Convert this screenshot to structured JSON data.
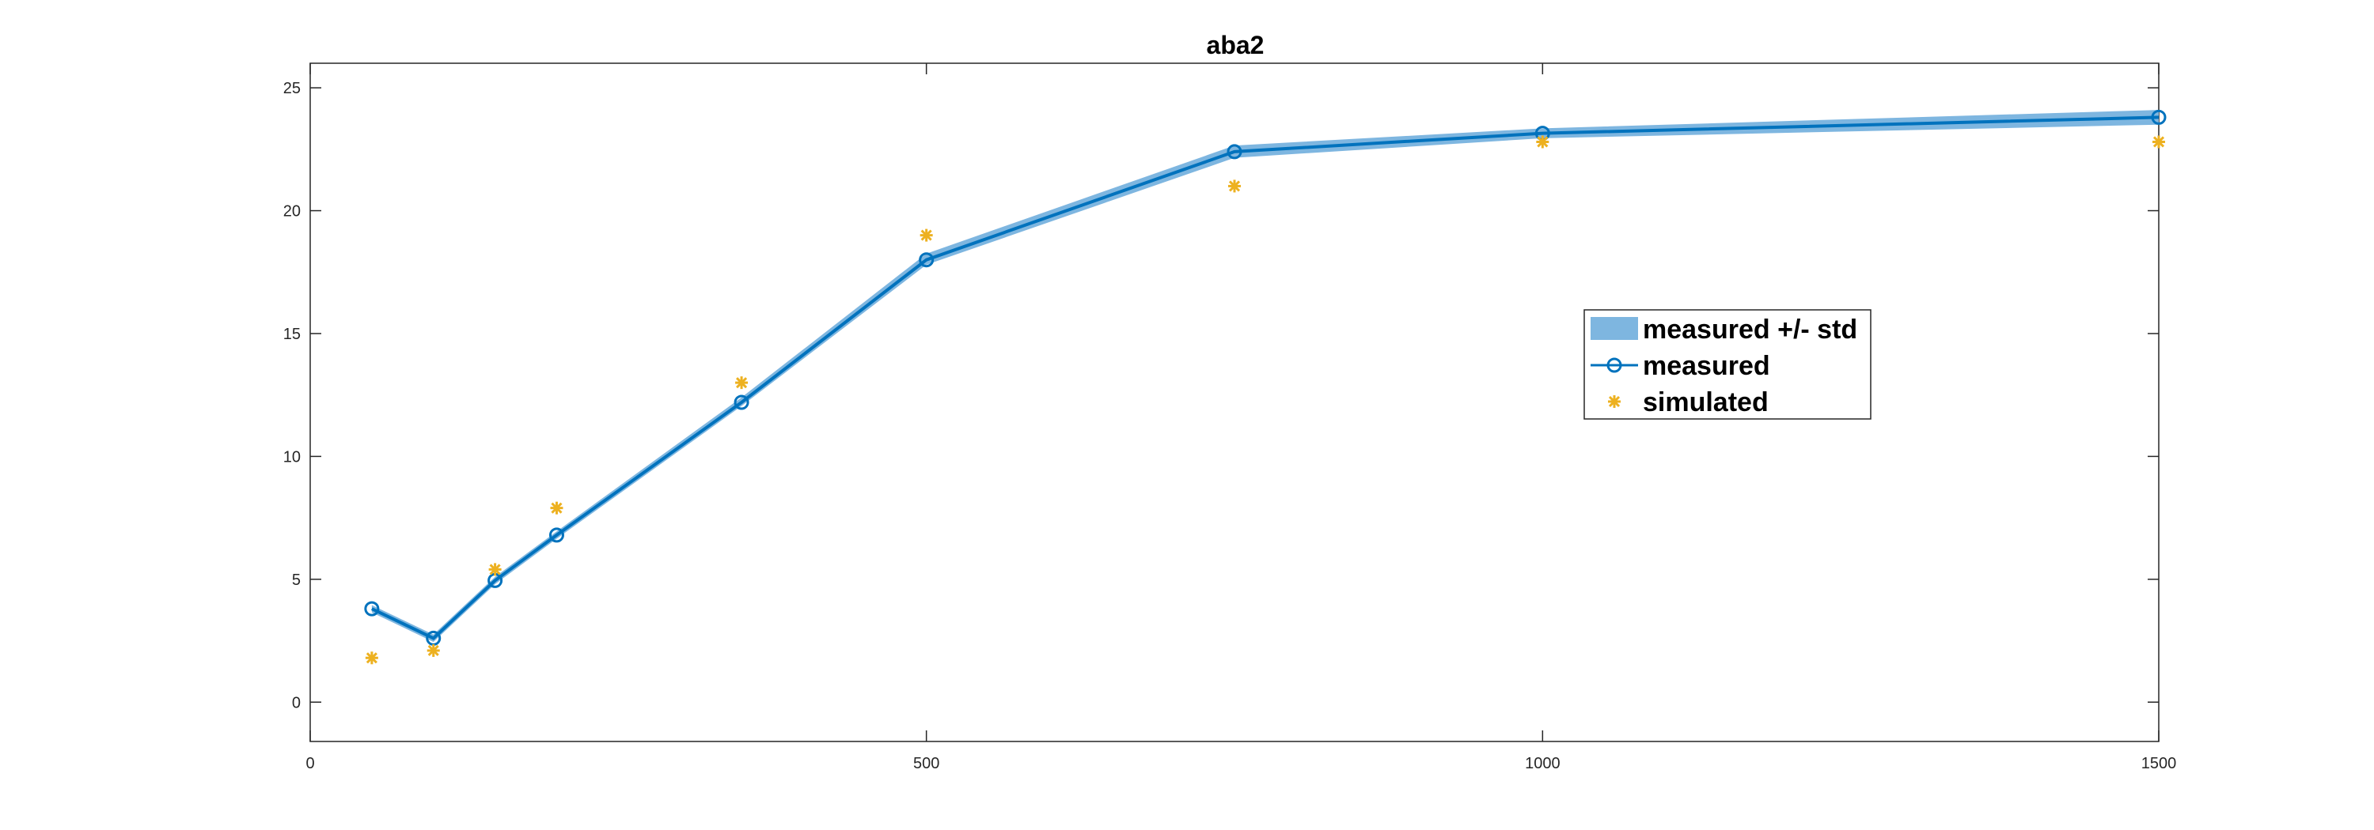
{
  "chart_data": {
    "type": "line",
    "title": "aba2",
    "xlabel": "",
    "ylabel": "",
    "xlim": [
      0,
      1500
    ],
    "ylim": [
      -1.6,
      26
    ],
    "xticks": [
      0,
      500,
      1000,
      1500
    ],
    "yticks": [
      0,
      5,
      10,
      15,
      20,
      25
    ],
    "grid": false,
    "legend_position": "right",
    "x": [
      50,
      100,
      150,
      200,
      350,
      500,
      750,
      1000,
      1500
    ],
    "series": [
      {
        "name": "measured +/- std",
        "kind": "band",
        "lower": [
          3.65,
          2.45,
          4.8,
          6.65,
          12.05,
          17.8,
          22.15,
          22.95,
          23.5
        ],
        "upper": [
          3.95,
          2.75,
          5.1,
          6.95,
          12.4,
          18.25,
          22.65,
          23.35,
          24.1
        ],
        "color": "#7EB6E0"
      },
      {
        "name": "measured",
        "kind": "line-marker",
        "marker": "circle",
        "values": [
          3.8,
          2.6,
          4.95,
          6.8,
          12.2,
          18.0,
          22.4,
          23.15,
          23.8
        ],
        "color": "#0072BD"
      },
      {
        "name": "simulated",
        "kind": "scatter",
        "marker": "asterisk",
        "values": [
          1.8,
          2.1,
          5.4,
          7.9,
          13.0,
          19.0,
          21.0,
          22.8,
          22.8
        ],
        "color": "#EDB120"
      }
    ]
  }
}
